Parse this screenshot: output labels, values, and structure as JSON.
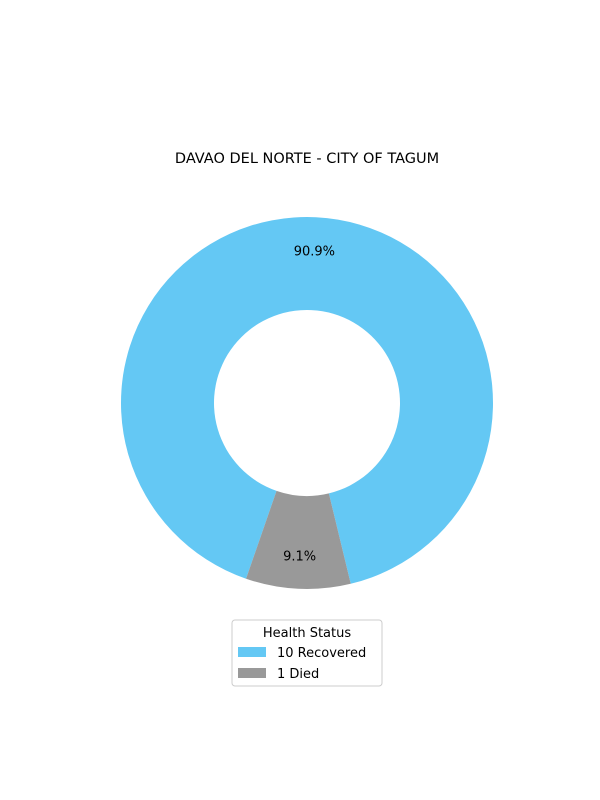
{
  "chart_data": {
    "type": "pie",
    "title": "DAVAO DEL NORTE - CITY OF TAGUM",
    "donut": true,
    "slices": [
      {
        "label": "10  Recovered",
        "value": 10,
        "percent_label": "90.9%",
        "color": "#64c8f4"
      },
      {
        "label": "1  Died",
        "value": 1,
        "percent_label": "9.1%",
        "color": "#999999"
      }
    ],
    "legend": {
      "title": "Health Status",
      "placement": "bottom-center"
    }
  }
}
